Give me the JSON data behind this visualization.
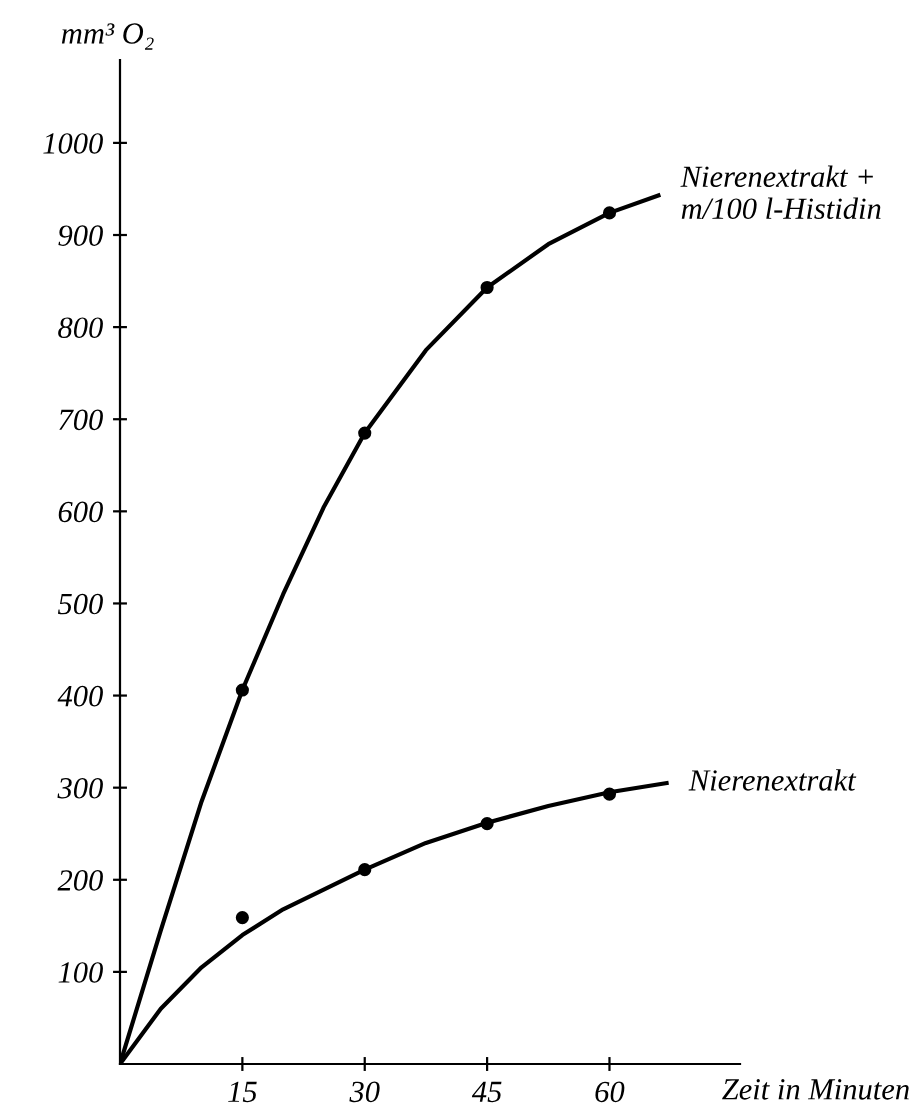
{
  "chart_data": {
    "type": "line",
    "xlabel": "Zeit in Minuten",
    "ylabel": "mm³ O₂",
    "xlim": [
      0,
      76
    ],
    "ylim": [
      0,
      1090
    ],
    "xticks": [
      15,
      30,
      45,
      60
    ],
    "yticks": [
      100,
      200,
      300,
      400,
      500,
      600,
      700,
      800,
      900,
      1000
    ],
    "grid": false,
    "legend": false,
    "series": [
      {
        "name": "Nierenextrakt +\nm/100 l-Histidin",
        "marker": "none",
        "line_style": "solid",
        "color": "#000000",
        "x": [
          0,
          5,
          10,
          15,
          20,
          25,
          30,
          37.5,
          45,
          52.5,
          60,
          66
        ],
        "values": [
          0,
          145,
          285,
          406,
          510,
          605,
          685,
          775,
          843,
          890,
          924,
          943
        ]
      },
      {
        "name": "Nierenextrakt",
        "marker": "none",
        "line_style": "solid",
        "color": "#000000",
        "x": [
          0,
          5,
          10,
          15,
          20,
          30,
          37.5,
          45,
          52.5,
          60,
          67
        ],
        "values": [
          0,
          60,
          105,
          140,
          168,
          211,
          240,
          262,
          280,
          295,
          305
        ]
      },
      {
        "type": "scatter",
        "marker": "circle",
        "color": "#000000",
        "x": [
          15,
          30,
          45,
          60
        ],
        "values": [
          406,
          685,
          843,
          924
        ]
      },
      {
        "type": "scatter",
        "marker": "circle",
        "color": "#000000",
        "x": [
          15,
          30,
          45,
          60
        ],
        "values": [
          159,
          211,
          261,
          293
        ]
      }
    ]
  }
}
